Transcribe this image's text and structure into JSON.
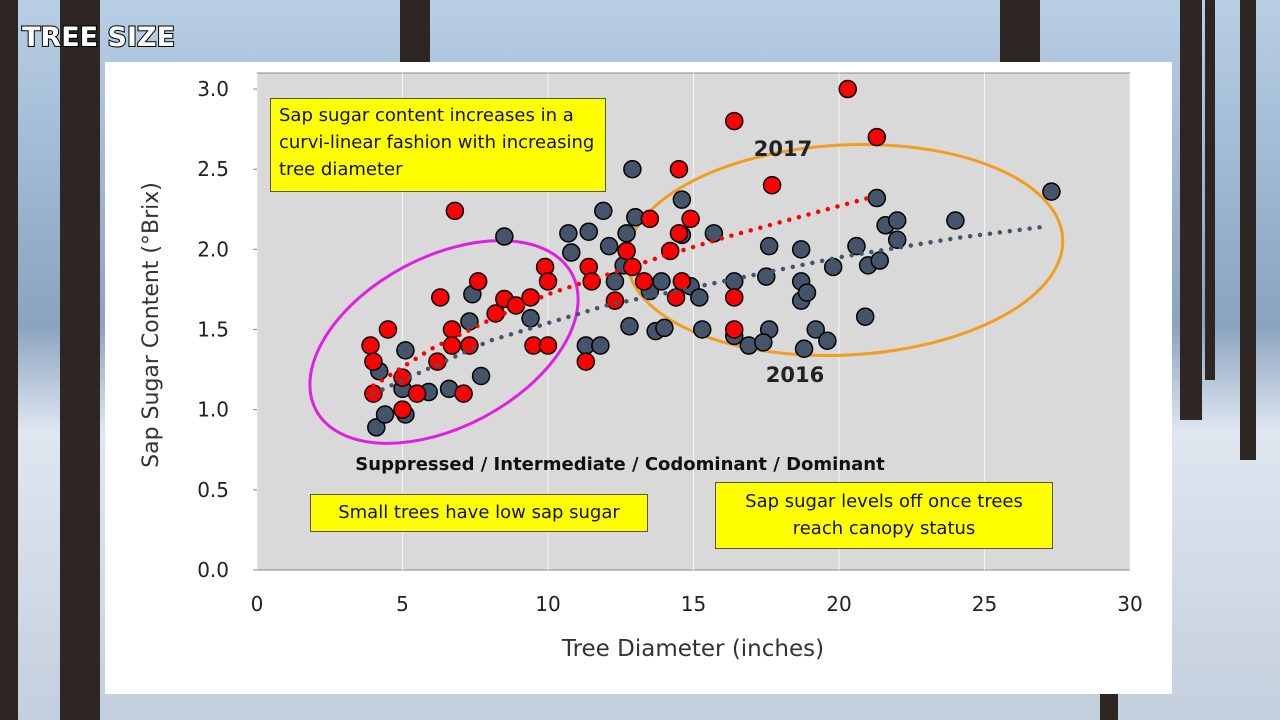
{
  "slide_title": "TREE SIZE",
  "chart_data": {
    "type": "scatter",
    "xlabel": "Tree Diameter (inches)",
    "ylabel": "Sap Sugar Content (°Brix)",
    "xlim": [
      0,
      30
    ],
    "ylim": [
      0,
      3.1
    ],
    "xticks": [
      0,
      5,
      10,
      15,
      20,
      25,
      30
    ],
    "yticks": [
      {
        "value": 0,
        "label": "0.0"
      },
      0.5,
      {
        "value": 1,
        "label": "1.0"
      },
      1.5,
      {
        "value": 2,
        "label": "2.0"
      },
      2.5,
      {
        "value": 3,
        "label": "3.0"
      }
    ],
    "xgrid": true,
    "series": [
      {
        "name": "2016",
        "color": "#44546a",
        "x": [
          4.1,
          4.2,
          4.4,
          5.1,
          5.0,
          5.1,
          5.9,
          6.6,
          7.7,
          7.3,
          7.4,
          8.5,
          9.4,
          10.7,
          10.8,
          11.3,
          11.8,
          11.4,
          11.9,
          12.1,
          12.3,
          12.6,
          12.7,
          12.9,
          13.0,
          12.8,
          13.5,
          13.7,
          14.0,
          13.9,
          14.6,
          14.6,
          14.9,
          15.2,
          15.3,
          15.7,
          16.4,
          16.4,
          16.9,
          17.5,
          17.6,
          17.6,
          17.4,
          18.7,
          18.7,
          18.7,
          18.9,
          18.8,
          19.2,
          19.6,
          19.8,
          20.6,
          20.9,
          21.0,
          21.3,
          21.4,
          21.6,
          22.0,
          22.0,
          24.0,
          27.3
        ],
        "values": [
          0.89,
          1.24,
          0.97,
          1.37,
          1.13,
          0.97,
          1.11,
          1.13,
          1.21,
          1.55,
          1.72,
          2.08,
          1.57,
          2.1,
          1.98,
          1.4,
          1.4,
          2.11,
          2.24,
          2.02,
          1.8,
          1.9,
          2.1,
          2.5,
          2.2,
          1.52,
          1.74,
          1.49,
          1.51,
          1.8,
          2.31,
          2.09,
          1.77,
          1.7,
          1.5,
          2.1,
          1.8,
          1.46,
          1.4,
          1.83,
          2.02,
          1.5,
          1.42,
          2.0,
          1.8,
          1.68,
          1.73,
          1.38,
          1.5,
          1.43,
          1.89,
          2.02,
          1.58,
          1.9,
          2.32,
          1.93,
          2.15,
          2.18,
          2.06,
          2.18,
          2.36
        ],
        "trend": {
          "x": [
            4,
            8,
            12,
            16,
            20,
            24,
            27
          ],
          "values": [
            1.1,
            1.43,
            1.65,
            1.8,
            1.95,
            2.07,
            2.14
          ]
        }
      },
      {
        "name": "2017",
        "color": "#ff0000",
        "x": [
          3.9,
          4.0,
          4.0,
          4.5,
          5.0,
          5.0,
          5.5,
          6.2,
          6.3,
          6.7,
          6.7,
          6.8,
          7.1,
          7.6,
          7.3,
          8.2,
          8.5,
          8.9,
          9.4,
          9.5,
          9.9,
          10.0,
          10.0,
          11.3,
          11.4,
          11.5,
          12.3,
          12.7,
          12.9,
          13.5,
          13.3,
          14.2,
          14.5,
          14.5,
          14.4,
          14.6,
          14.9,
          16.4,
          16.4,
          16.4,
          17.7,
          20.3,
          21.3
        ],
        "values": [
          1.4,
          1.3,
          1.1,
          1.5,
          1.2,
          1.0,
          1.1,
          1.3,
          1.7,
          1.5,
          1.4,
          2.24,
          1.1,
          1.8,
          1.4,
          1.6,
          1.69,
          1.65,
          1.7,
          1.4,
          1.89,
          1.8,
          1.4,
          1.3,
          1.89,
          1.8,
          1.68,
          1.99,
          1.89,
          2.19,
          1.8,
          1.99,
          2.1,
          2.5,
          1.7,
          1.8,
          2.19,
          2.8,
          1.7,
          1.5,
          2.4,
          3.0,
          2.7
        ],
        "trend": {
          "x": [
            4,
            6,
            8,
            10,
            12,
            14,
            16,
            18,
            21
          ],
          "values": [
            1.15,
            1.38,
            1.56,
            1.72,
            1.84,
            1.96,
            2.07,
            2.17,
            2.32
          ]
        }
      }
    ],
    "annotations": {
      "top_note": "Sap sugar content increases in a curvi-linear fashion with increasing tree diameter",
      "classes": "Suppressed / Intermediate / Codominant / Dominant",
      "small_note": "Small trees have low sap sugar",
      "canopy_note": "Sap sugar levels off once trees reach canopy status"
    }
  }
}
